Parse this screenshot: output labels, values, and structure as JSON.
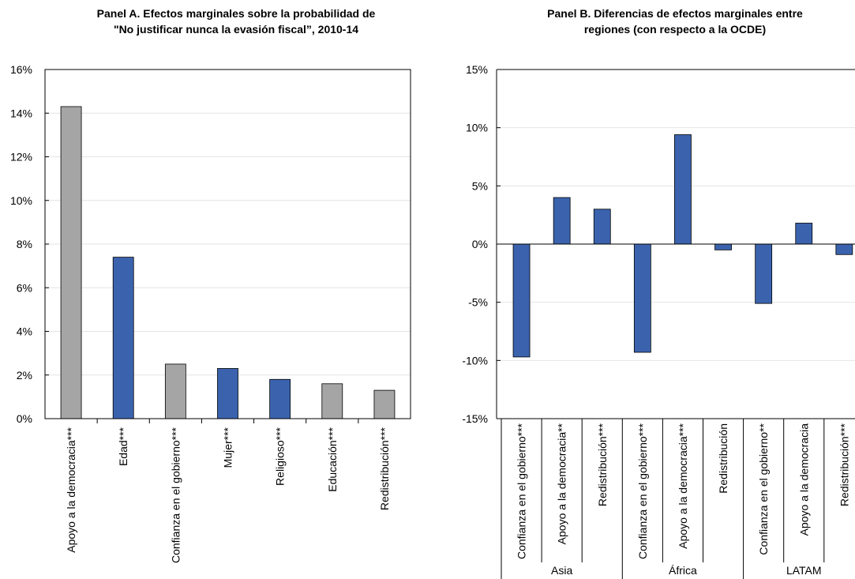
{
  "colors": {
    "blue": "#3B63AD",
    "gray": "#A5A5A5",
    "grid": "#E4E4E4",
    "axis": "#000000"
  },
  "chart_data": [
    {
      "type": "bar",
      "title_lines": [
        "Panel A.  Efectos marginales sobre la probabilidad de",
        "\"No justificar nunca la evasión fiscal”, 2010-14"
      ],
      "categories": [
        "Apoyo a la democracia***",
        "Edad***",
        "Confianza en el gobierno***",
        "Mujer***",
        "Religioso***",
        "Educación***",
        "Redistribución***"
      ],
      "values": [
        14.3,
        7.4,
        2.5,
        2.3,
        1.8,
        1.6,
        1.3
      ],
      "bar_colors": [
        "#A5A5A5",
        "#3B63AD",
        "#A5A5A5",
        "#3B63AD",
        "#3B63AD",
        "#A5A5A5",
        "#A5A5A5"
      ],
      "ylim": [
        0,
        16
      ],
      "yticks": [
        0,
        2,
        4,
        6,
        8,
        10,
        12,
        14,
        16
      ],
      "ytick_labels": [
        "0%",
        "2%",
        "4%",
        "6%",
        "8%",
        "10%",
        "12%",
        "14%",
        "16%"
      ],
      "grid": true
    },
    {
      "type": "bar",
      "title_lines": [
        "Panel B. Diferencias de efectos marginales entre",
        "regiones (con respecto a la OCDE)"
      ],
      "groups": [
        {
          "label": "Asia",
          "categories": [
            "Confianza en el gobierno***",
            "Apoyo a la democracia**",
            "Redistribución***"
          ],
          "values": [
            -9.7,
            4.0,
            3.0
          ]
        },
        {
          "label": "África",
          "categories": [
            "Confianza en el gobierno***",
            "Apoyo a la democracia***",
            "Redistribución"
          ],
          "values": [
            -9.3,
            9.4,
            -0.5
          ]
        },
        {
          "label": "LATAM",
          "categories": [
            "Confianza en el gobierno**",
            "Apoyo a la democracia",
            "Redistribución***"
          ],
          "values": [
            -5.1,
            1.8,
            -0.9
          ]
        }
      ],
      "bar_color": "#3B63AD",
      "ylim": [
        -15,
        15
      ],
      "yticks": [
        -15,
        -10,
        -5,
        0,
        5,
        10,
        15
      ],
      "ytick_labels": [
        "-15%",
        "-10%",
        "-5%",
        "0%",
        "5%",
        "10%",
        "15%"
      ],
      "grid": true
    }
  ]
}
